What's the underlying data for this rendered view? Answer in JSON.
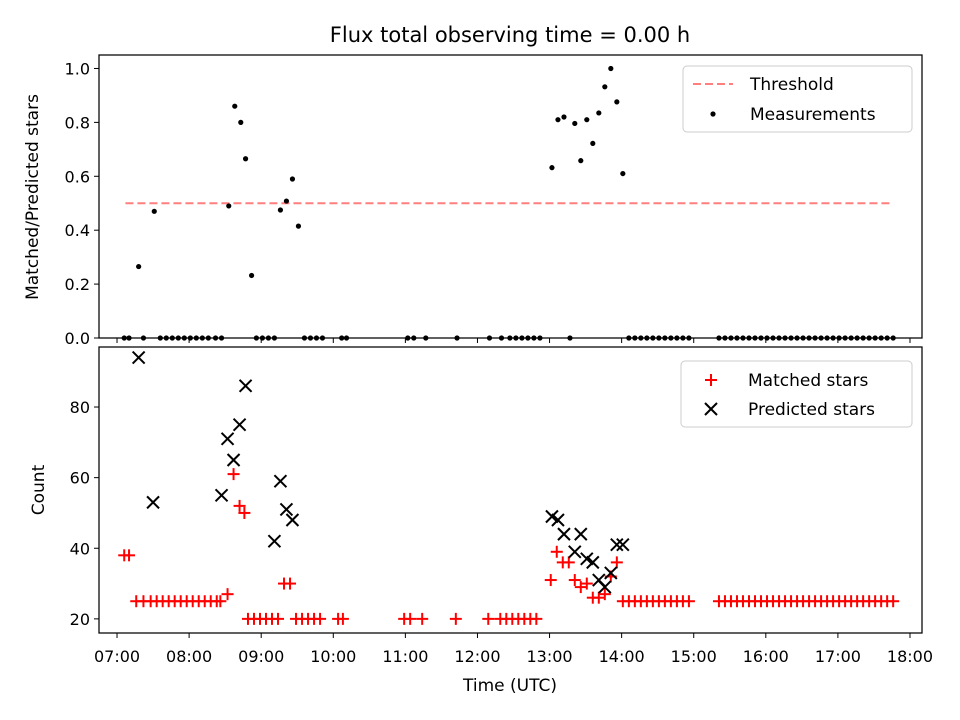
{
  "title": "Flux total observing time = 0.00 h",
  "chart_data": [
    {
      "type": "scatter",
      "panel": "top",
      "xlabel": "",
      "ylabel": "Matched/Predicted stars",
      "xlim": [
        "06:45",
        "18:10"
      ],
      "ylim": [
        0,
        1.05
      ],
      "yticks": [
        0.0,
        0.2,
        0.4,
        0.6,
        0.8,
        1.0
      ],
      "ytick_labels": [
        "0.0",
        "0.2",
        "0.4",
        "0.6",
        "0.8",
        "1.0"
      ],
      "legend_position": "top-right",
      "threshold": {
        "name": "Threshold",
        "value": 0.5,
        "x_start": "07:07",
        "x_end": "17:44",
        "color": "#ff7f7f",
        "style": "dashed"
      },
      "series": [
        {
          "name": "Measurements",
          "color": "#000000",
          "marker": "dot",
          "points": [
            [
              "07:06",
              0
            ],
            [
              "07:10",
              0
            ],
            [
              "07:18",
              0.265
            ],
            [
              "07:22",
              0
            ],
            [
              "07:31",
              0.47
            ],
            [
              "07:36",
              0
            ],
            [
              "07:41",
              0
            ],
            [
              "07:46",
              0
            ],
            [
              "07:51",
              0
            ],
            [
              "07:56",
              0
            ],
            [
              "08:01",
              0
            ],
            [
              "08:06",
              0
            ],
            [
              "08:11",
              0
            ],
            [
              "08:16",
              0
            ],
            [
              "08:22",
              0
            ],
            [
              "08:27",
              0
            ],
            [
              "08:33",
              0.49
            ],
            [
              "08:38",
              0.86
            ],
            [
              "08:43",
              0.8
            ],
            [
              "08:47",
              0.665
            ],
            [
              "08:52",
              0.232
            ],
            [
              "08:56",
              0
            ],
            [
              "09:01",
              0
            ],
            [
              "09:06",
              0
            ],
            [
              "09:11",
              0
            ],
            [
              "09:16",
              0.475
            ],
            [
              "09:21",
              0.508
            ],
            [
              "09:26",
              0.59
            ],
            [
              "09:31",
              0.415
            ],
            [
              "09:36",
              0
            ],
            [
              "09:41",
              0
            ],
            [
              "09:46",
              0
            ],
            [
              "09:51",
              0
            ],
            [
              "10:07",
              0
            ],
            [
              "10:11",
              0
            ],
            [
              "11:02",
              0
            ],
            [
              "11:07",
              0
            ],
            [
              "11:17",
              0
            ],
            [
              "11:43",
              0
            ],
            [
              "12:10",
              0
            ],
            [
              "12:20",
              0
            ],
            [
              "12:27",
              0
            ],
            [
              "12:32",
              0
            ],
            [
              "12:37",
              0
            ],
            [
              "12:42",
              0
            ],
            [
              "12:47",
              0
            ],
            [
              "12:52",
              0
            ],
            [
              "13:02",
              0.632
            ],
            [
              "13:07",
              0.81
            ],
            [
              "13:12",
              0.82
            ],
            [
              "13:17",
              0
            ],
            [
              "13:21",
              0.796
            ],
            [
              "13:26",
              0.658
            ],
            [
              "13:31",
              0.81
            ],
            [
              "13:36",
              0.722
            ],
            [
              "13:41",
              0.835
            ],
            [
              "13:46",
              0.932
            ],
            [
              "13:51",
              1.0
            ],
            [
              "13:56",
              0.876
            ],
            [
              "14:01",
              0.61
            ],
            [
              "14:06",
              0
            ],
            [
              "14:11",
              0
            ],
            [
              "14:16",
              0
            ],
            [
              "14:21",
              0
            ],
            [
              "14:26",
              0
            ],
            [
              "14:31",
              0
            ],
            [
              "14:36",
              0
            ],
            [
              "14:41",
              0
            ],
            [
              "14:46",
              0
            ],
            [
              "14:51",
              0
            ],
            [
              "14:56",
              0
            ],
            [
              "15:21",
              0
            ],
            [
              "15:26",
              0
            ],
            [
              "15:31",
              0
            ],
            [
              "15:36",
              0
            ],
            [
              "15:41",
              0
            ],
            [
              "15:46",
              0
            ],
            [
              "15:51",
              0
            ],
            [
              "15:56",
              0
            ],
            [
              "16:01",
              0
            ],
            [
              "16:06",
              0
            ],
            [
              "16:11",
              0
            ],
            [
              "16:16",
              0
            ],
            [
              "16:21",
              0
            ],
            [
              "16:26",
              0
            ],
            [
              "16:31",
              0
            ],
            [
              "16:36",
              0
            ],
            [
              "16:41",
              0
            ],
            [
              "16:46",
              0
            ],
            [
              "16:51",
              0
            ],
            [
              "16:56",
              0
            ],
            [
              "17:01",
              0
            ],
            [
              "17:06",
              0
            ],
            [
              "17:11",
              0
            ],
            [
              "17:16",
              0
            ],
            [
              "17:21",
              0
            ],
            [
              "17:26",
              0
            ],
            [
              "17:31",
              0
            ],
            [
              "17:36",
              0
            ],
            [
              "17:41",
              0
            ],
            [
              "17:46",
              0
            ]
          ]
        }
      ]
    },
    {
      "type": "scatter",
      "panel": "bottom",
      "xlabel": "Time (UTC)",
      "ylabel": "Count",
      "xlim": [
        "06:45",
        "18:10"
      ],
      "ylim": [
        16,
        97
      ],
      "yticks": [
        20,
        40,
        60,
        80
      ],
      "ytick_labels": [
        "20",
        "40",
        "60",
        "80"
      ],
      "xticks": [
        "07:00",
        "08:00",
        "09:00",
        "10:00",
        "11:00",
        "12:00",
        "13:00",
        "14:00",
        "15:00",
        "16:00",
        "17:00",
        "18:00"
      ],
      "xtick_labels": [
        "07:00",
        "08:00",
        "09:00",
        "10:00",
        "11:00",
        "12:00",
        "13:00",
        "14:00",
        "15:00",
        "16:00",
        "17:00",
        "18:00"
      ],
      "legend_position": "top-right",
      "series": [
        {
          "name": "Matched stars",
          "color": "#ff0000",
          "marker": "plus",
          "points": [
            [
              "07:06",
              38
            ],
            [
              "07:10",
              38
            ],
            [
              "07:16",
              25
            ],
            [
              "07:22",
              25
            ],
            [
              "07:28",
              25
            ],
            [
              "07:33",
              25
            ],
            [
              "07:38",
              25
            ],
            [
              "07:43",
              25
            ],
            [
              "07:48",
              25
            ],
            [
              "07:53",
              25
            ],
            [
              "07:58",
              25
            ],
            [
              "08:03",
              25
            ],
            [
              "08:08",
              25
            ],
            [
              "08:13",
              25
            ],
            [
              "08:18",
              25
            ],
            [
              "08:23",
              25
            ],
            [
              "08:26",
              25
            ],
            [
              "08:32",
              27
            ],
            [
              "08:37",
              61
            ],
            [
              "08:42",
              52
            ],
            [
              "08:46",
              50
            ],
            [
              "08:49",
              20
            ],
            [
              "08:54",
              20
            ],
            [
              "08:59",
              20
            ],
            [
              "09:04",
              20
            ],
            [
              "09:09",
              20
            ],
            [
              "09:14",
              20
            ],
            [
              "09:19",
              30
            ],
            [
              "09:24",
              30
            ],
            [
              "09:29",
              20
            ],
            [
              "09:34",
              20
            ],
            [
              "09:39",
              20
            ],
            [
              "09:44",
              20
            ],
            [
              "09:49",
              20
            ],
            [
              "10:04",
              20
            ],
            [
              "10:08",
              20
            ],
            [
              "10:59",
              20
            ],
            [
              "11:04",
              20
            ],
            [
              "11:14",
              20
            ],
            [
              "11:42",
              20
            ],
            [
              "12:09",
              20
            ],
            [
              "12:19",
              20
            ],
            [
              "12:24",
              20
            ],
            [
              "12:29",
              20
            ],
            [
              "12:34",
              20
            ],
            [
              "12:39",
              20
            ],
            [
              "12:44",
              20
            ],
            [
              "12:49",
              20
            ],
            [
              "13:01",
              31
            ],
            [
              "13:06",
              39
            ],
            [
              "13:11",
              36
            ],
            [
              "13:16",
              36
            ],
            [
              "13:21",
              31
            ],
            [
              "13:26",
              29
            ],
            [
              "13:31",
              30
            ],
            [
              "13:36",
              26
            ],
            [
              "13:41",
              26
            ],
            [
              "13:46",
              27
            ],
            [
              "13:51",
              32
            ],
            [
              "13:56",
              36
            ],
            [
              "14:01",
              25
            ],
            [
              "14:06",
              25
            ],
            [
              "14:11",
              25
            ],
            [
              "14:16",
              25
            ],
            [
              "14:21",
              25
            ],
            [
              "14:26",
              25
            ],
            [
              "14:31",
              25
            ],
            [
              "14:36",
              25
            ],
            [
              "14:41",
              25
            ],
            [
              "14:46",
              25
            ],
            [
              "14:51",
              25
            ],
            [
              "14:56",
              25
            ],
            [
              "15:21",
              25
            ],
            [
              "15:26",
              25
            ],
            [
              "15:31",
              25
            ],
            [
              "15:36",
              25
            ],
            [
              "15:41",
              25
            ],
            [
              "15:46",
              25
            ],
            [
              "15:51",
              25
            ],
            [
              "15:56",
              25
            ],
            [
              "16:01",
              25
            ],
            [
              "16:06",
              25
            ],
            [
              "16:11",
              25
            ],
            [
              "16:16",
              25
            ],
            [
              "16:21",
              25
            ],
            [
              "16:26",
              25
            ],
            [
              "16:31",
              25
            ],
            [
              "16:36",
              25
            ],
            [
              "16:41",
              25
            ],
            [
              "16:46",
              25
            ],
            [
              "16:51",
              25
            ],
            [
              "16:56",
              25
            ],
            [
              "17:01",
              25
            ],
            [
              "17:06",
              25
            ],
            [
              "17:11",
              25
            ],
            [
              "17:16",
              25
            ],
            [
              "17:21",
              25
            ],
            [
              "17:26",
              25
            ],
            [
              "17:31",
              25
            ],
            [
              "17:36",
              25
            ],
            [
              "17:41",
              25
            ],
            [
              "17:46",
              25
            ]
          ]
        },
        {
          "name": "Predicted stars",
          "color": "#000000",
          "marker": "x",
          "points": [
            [
              "07:18",
              94
            ],
            [
              "07:30",
              53
            ],
            [
              "08:27",
              55
            ],
            [
              "08:32",
              71
            ],
            [
              "08:37",
              65
            ],
            [
              "08:42",
              75
            ],
            [
              "08:47",
              86
            ],
            [
              "09:11",
              42
            ],
            [
              "09:16",
              59
            ],
            [
              "09:21",
              51
            ],
            [
              "09:26",
              48
            ],
            [
              "13:02",
              49
            ],
            [
              "13:07",
              48
            ],
            [
              "13:12",
              44
            ],
            [
              "13:21",
              39
            ],
            [
              "13:26",
              44
            ],
            [
              "13:31",
              37
            ],
            [
              "13:36",
              36
            ],
            [
              "13:41",
              31
            ],
            [
              "13:46",
              29
            ],
            [
              "13:51",
              33
            ],
            [
              "13:56",
              41
            ],
            [
              "14:01",
              41
            ]
          ]
        }
      ]
    }
  ]
}
